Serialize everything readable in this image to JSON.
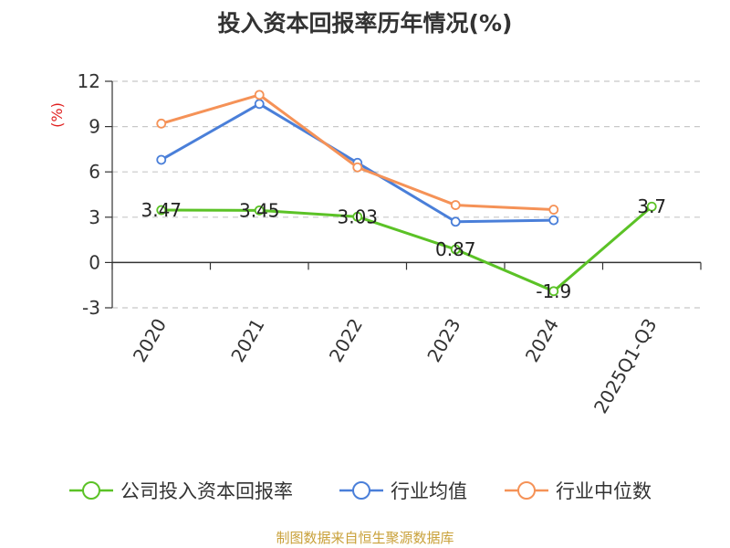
{
  "chart_data": {
    "type": "line",
    "title": "投入资本回报率历年情况(%)",
    "ylabel": "(%)",
    "xlabel": "",
    "categories": [
      "2020",
      "2021",
      "2022",
      "2023",
      "2024",
      "2025Q1-Q3"
    ],
    "ylim": [
      -3,
      12
    ],
    "yticks": [
      -3,
      0,
      3,
      6,
      9,
      12
    ],
    "grid": true,
    "legend_position": "bottom",
    "series": [
      {
        "name": "公司投入资本回报率",
        "color": "#5bc226",
        "values": [
          3.47,
          3.45,
          3.03,
          0.87,
          -1.9,
          3.7
        ],
        "labels": [
          "3.47",
          "3.45",
          "3.03",
          "0.87",
          "-1.9",
          "3.7"
        ]
      },
      {
        "name": "行业均值",
        "color": "#4a7fd9",
        "values": [
          6.8,
          10.5,
          6.6,
          2.7,
          2.8,
          null
        ]
      },
      {
        "name": "行业中位数",
        "color": "#f59257",
        "values": [
          9.2,
          11.1,
          6.3,
          3.8,
          3.5,
          null
        ]
      }
    ]
  },
  "footer": {
    "text": "制图数据来自恒生聚源数据库",
    "color": "#c9a13a"
  }
}
